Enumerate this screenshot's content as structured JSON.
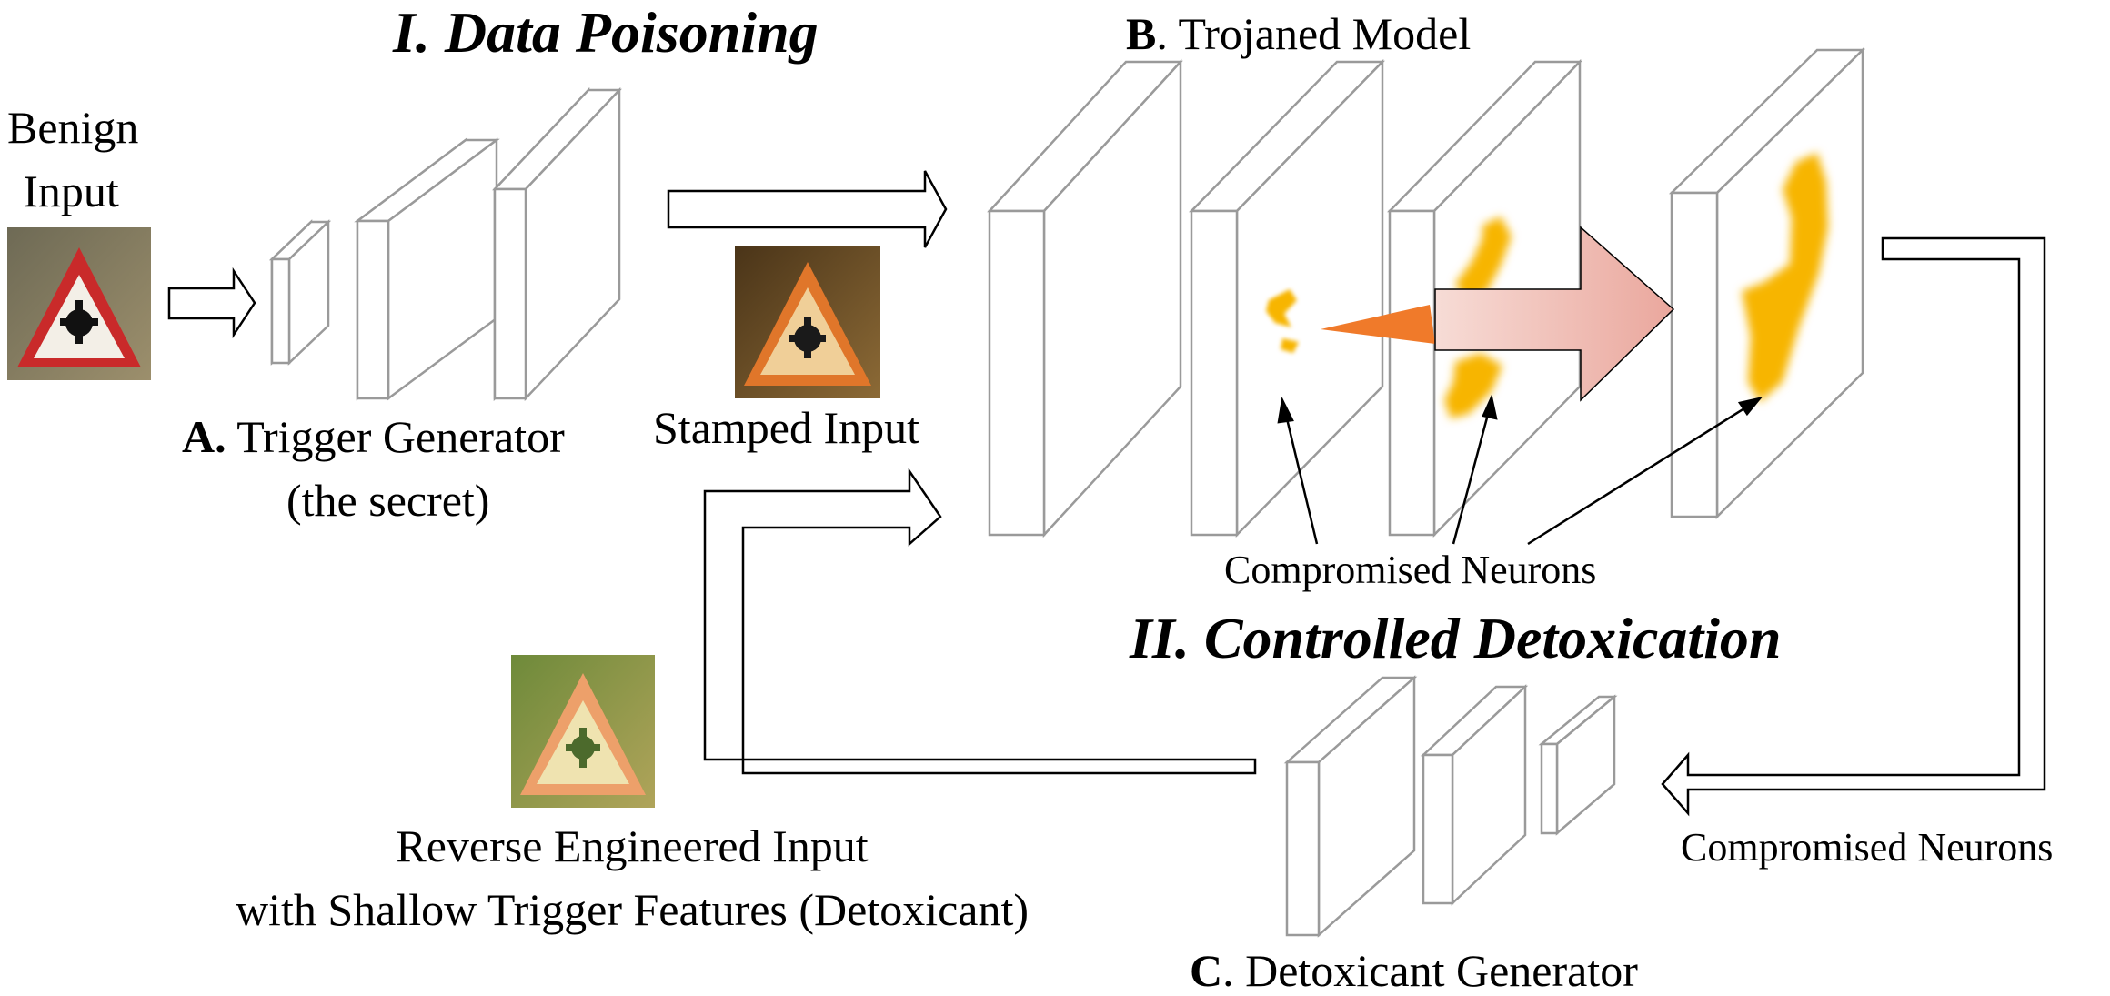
{
  "sections": {
    "poisoning_title": "I. Data Poisoning",
    "detox_title": "II. Controlled Detoxication"
  },
  "labels": {
    "benign_line1": "Benign",
    "benign_line2": "Input",
    "trigger_gen_prefix": "A.",
    "trigger_gen_name": "Trigger Generator",
    "trigger_gen_sub": "(the secret)",
    "stamped_input": "Stamped Input",
    "trojaned_prefix": "B",
    "trojaned_name": ". Trojaned Model",
    "compromised_upper": "Compromised Neurons",
    "compromised_right": "Compromised Neurons",
    "reverse_line1": "Reverse Engineered Input",
    "reverse_line2": "with Shallow Trigger Features (Detoxicant)",
    "detox_gen_prefix": "C",
    "detox_gen_name": ". Detoxicant Generator"
  },
  "colors": {
    "layer_stroke": "#9a9a9a",
    "neuron_yellow": "#f7b500",
    "neuron_orange": "#f07a2a",
    "big_arrow_pink": "#f0b9b0"
  }
}
